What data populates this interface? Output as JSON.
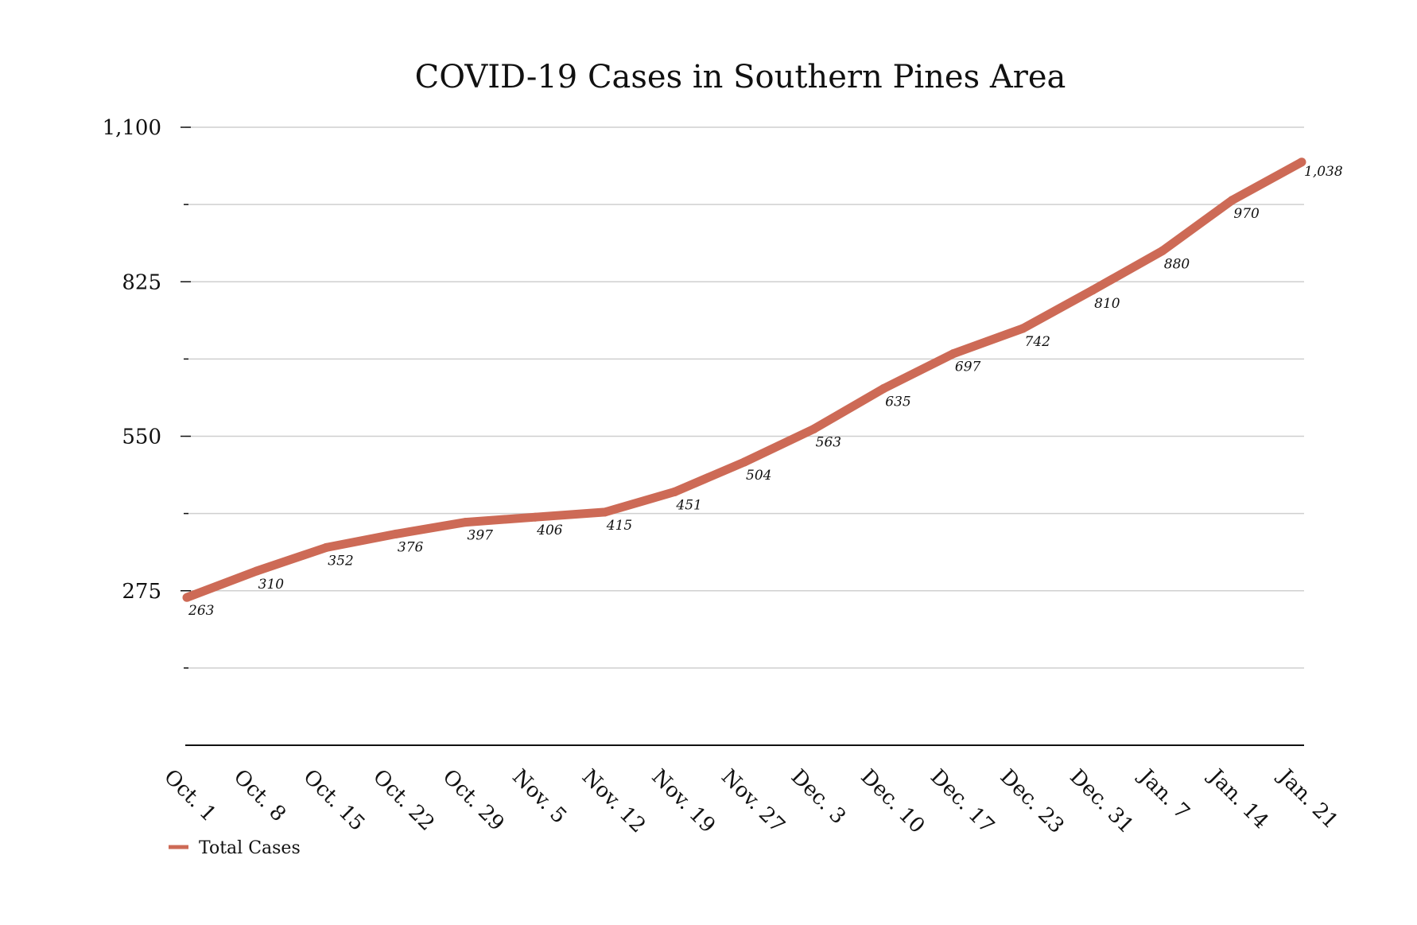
{
  "chart_data": {
    "type": "line",
    "title": "COVID-19 Cases in Southern Pines Area",
    "xlabel": "",
    "ylabel": "",
    "categories": [
      "Oct. 1",
      "Oct. 8",
      "Oct. 15",
      "Oct. 22",
      "Oct. 29",
      "Nov. 5",
      "Nov. 12",
      "Nov. 19",
      "Nov. 27",
      "Dec. 3",
      "Dec. 10",
      "Dec. 17",
      "Dec. 23",
      "Dec. 31",
      "Jan. 7",
      "Jan. 14",
      "Jan. 21"
    ],
    "series": [
      {
        "name": "Total Cases",
        "color": "#cd6a56",
        "values": [
          263,
          310,
          352,
          376,
          397,
          406,
          415,
          451,
          504,
          563,
          635,
          697,
          742,
          810,
          880,
          970,
          1038
        ],
        "value_labels": [
          "263",
          "310",
          "352",
          "376",
          "397",
          "406",
          "415",
          "451",
          "504",
          "563",
          "635",
          "697",
          "742",
          "810",
          "880",
          "970",
          "1,038"
        ]
      }
    ],
    "ylim": [
      0,
      1100
    ],
    "yticks": [
      275,
      550,
      825,
      1100
    ],
    "ytick_labels": [
      "275",
      "550",
      "825",
      "1,100"
    ],
    "minor_yticks": [
      137.5,
      412.5,
      687.5,
      962.5
    ],
    "grid": true,
    "legend": {
      "position": "bottom-left",
      "label": "Total Cases"
    }
  }
}
